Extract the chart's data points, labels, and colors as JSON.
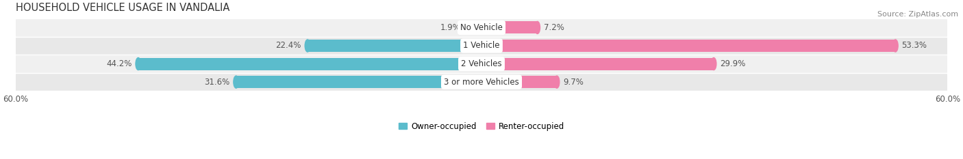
{
  "title": "HOUSEHOLD VEHICLE USAGE IN VANDALIA",
  "source": "Source: ZipAtlas.com",
  "categories": [
    "No Vehicle",
    "1 Vehicle",
    "2 Vehicles",
    "3 or more Vehicles"
  ],
  "owner_values": [
    1.9,
    22.4,
    44.2,
    31.6
  ],
  "renter_values": [
    7.2,
    53.3,
    29.9,
    9.7
  ],
  "owner_color": "#5bbccc",
  "renter_color": "#f07faa",
  "owner_color_light": "#a8dce8",
  "renter_color_light": "#f7b8d0",
  "row_bg_colors": [
    "#f0f0f0",
    "#e8e8e8"
  ],
  "xlim": 60.0,
  "bar_height": 0.68,
  "title_fontsize": 10.5,
  "source_fontsize": 8,
  "label_fontsize": 8.5,
  "tick_fontsize": 8.5,
  "legend_fontsize": 8.5,
  "category_fontsize": 8.5,
  "figsize": [
    14.06,
    2.33
  ],
  "dpi": 100
}
